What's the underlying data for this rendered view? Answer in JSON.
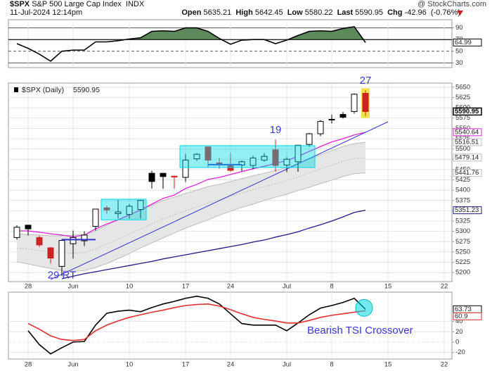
{
  "header": {
    "symbol": "$SPX",
    "name": "S&P 500 Large Cap Index",
    "exchange": "INDX",
    "source": "@ StockCharts.com",
    "datetime": "11-Jul-2024 12:14pm",
    "quote": [
      {
        "label": "Open",
        "value": 5635.21
      },
      {
        "label": "High",
        "value": 5642.45
      },
      {
        "label": "Low",
        "value": 5580.22
      },
      {
        "label": "Last",
        "value": 5590.95
      },
      {
        "label": "Chg",
        "value": -42.96
      }
    ],
    "change_pct": {
      "value": -0.76,
      "label": "(-0.76%)"
    },
    "change_color": "#cc2222"
  },
  "chart_data": [
    {
      "type": "line",
      "ylim": [
        22,
        104
      ],
      "yticks": [
        90,
        70,
        50,
        30
      ],
      "grid": true,
      "series": [
        {
          "color": "#000000",
          "fill_above": 70,
          "fill_color": "#5d8a5a",
          "values": [
            63,
            55,
            45,
            33,
            50,
            52,
            52,
            66,
            66,
            68,
            71,
            73,
            84,
            85,
            84,
            90,
            90,
            84,
            72,
            62,
            69,
            70,
            70,
            63,
            69,
            77,
            84,
            85,
            84,
            89,
            92,
            64.99,
            null,
            null,
            null,
            null,
            null,
            null,
            null
          ]
        }
      ]
    },
    {
      "type": "candlestick",
      "legend_label": "$SPX (Daily)",
      "categories": [
        null,
        "28",
        null,
        null,
        null,
        "Jun",
        null,
        null,
        null,
        null,
        "10",
        null,
        null,
        null,
        null,
        "17",
        null,
        null,
        null,
        "24",
        null,
        null,
        null,
        null,
        "Jul",
        null,
        null,
        null,
        "8",
        null,
        null,
        null,
        null,
        "15",
        null,
        null,
        null,
        null,
        "22"
      ],
      "open": [
        5285,
        5315,
        5285,
        5260,
        5215,
        5270,
        5277,
        5312,
        5357,
        5343,
        5341,
        5353,
        5441,
        5441,
        5434,
        5431,
        5476,
        5505,
        5466,
        5459,
        5461,
        5460,
        5473,
        5498,
        5461,
        5469,
        5511,
        5537,
        5572,
        5584,
        5591,
        5635.21,
        null,
        null,
        null,
        null,
        null,
        null,
        null
      ],
      "high": [
        5315,
        5315,
        5290,
        5262,
        5281,
        5302,
        5300,
        5354,
        5362,
        5376,
        5366,
        5376,
        5447,
        5441,
        5434,
        5488,
        5490,
        5505,
        5478,
        5490,
        5472,
        5483,
        5490,
        5523,
        5480,
        5510,
        5539,
        5570,
        5583,
        5590,
        5635,
        5642.45,
        null,
        null,
        null,
        null,
        null,
        null,
        null
      ],
      "low": [
        5280,
        5290,
        5262,
        5222,
        5191,
        5234,
        5264,
        5302,
        5343,
        5331,
        5331,
        5331,
        5404,
        5403,
        5403,
        5420,
        5471,
        5455,
        5452,
        5445,
        5446,
        5451,
        5469,
        5445,
        5444,
        5445,
        5505,
        5531,
        5562,
        5574,
        5586,
        5580.22,
        null,
        null,
        null,
        null,
        null,
        null,
        null
      ],
      "close": [
        5310,
        5306,
        5267,
        5235,
        5278,
        5285,
        5291,
        5354,
        5352,
        5347,
        5361,
        5375,
        5421,
        5433,
        5432,
        5473,
        5487,
        5473,
        5465,
        5448,
        5469,
        5478,
        5482,
        5460,
        5475,
        5509,
        5537,
        5567,
        5572,
        5577,
        5633,
        5590.95,
        null,
        null,
        null,
        null,
        null,
        null,
        null
      ],
      "candle_colors": [
        "#000000",
        "#000000",
        "#cc2222",
        "#cc2222",
        "#000000",
        "#000000",
        "#000000",
        "#000000",
        "#cc2222",
        "#000000",
        "#000000",
        "#000000",
        "#000000",
        "#000000",
        "#cc2222",
        "#000000",
        "#000000",
        "#cc2222",
        "#cc2222",
        "#cc2222",
        "#000000",
        "#000000",
        "#000000",
        "#cc2222",
        "#000000",
        "#000000",
        "#000000",
        "#000000",
        "#000000",
        "#000000",
        "#000000",
        "#cc2222",
        null,
        null,
        null,
        null,
        null,
        null,
        null
      ],
      "ylim": [
        5178,
        5660
      ],
      "yticks": [
        5200,
        5225,
        5250,
        5275,
        5300,
        5325,
        5350,
        5375,
        5400,
        5425,
        5450,
        5475,
        5500,
        5525,
        5550,
        5575,
        5600,
        5625,
        5650
      ],
      "grid": true,
      "band": {
        "fill": "#e6e6e6",
        "line_color": "#bdbdbd",
        "upper": [
          5294,
          5292,
          5291,
          5289,
          5289,
          5291,
          5292,
          5301,
          5315,
          5328,
          5340,
          5352,
          5363,
          5375,
          5383,
          5392,
          5400,
          5409,
          5414,
          5421,
          5428,
          5435,
          5441,
          5448,
          5455,
          5465,
          5476,
          5486,
          5496,
          5506,
          5513,
          5516.51,
          null,
          null,
          null,
          null,
          null,
          null,
          null
        ],
        "middle": [
          5260,
          5257,
          5253,
          5250,
          5247,
          5247,
          5249,
          5257,
          5269,
          5281,
          5293,
          5306,
          5318,
          5330,
          5340,
          5350,
          5359,
          5369,
          5377,
          5385,
          5393,
          5401,
          5408,
          5416,
          5423,
          5432,
          5442,
          5451,
          5460,
          5470,
          5477,
          5479.14,
          null,
          null,
          null,
          null,
          null,
          null,
          null
        ],
        "lower": [
          5226,
          5221,
          5215,
          5210,
          5205,
          5203,
          5205,
          5212,
          5222,
          5234,
          5246,
          5260,
          5272,
          5284,
          5296,
          5308,
          5318,
          5328,
          5339,
          5349,
          5358,
          5366,
          5375,
          5383,
          5390,
          5399,
          5407,
          5416,
          5424,
          5433,
          5440,
          5441.76,
          null,
          null,
          null,
          null,
          null,
          null,
          null
        ]
      },
      "series": [
        {
          "color": "#e020d8",
          "values": [
            5301,
            5301,
            5298,
            5294,
            5291,
            5287,
            5291,
            5306,
            5318,
            5328,
            5340,
            5352,
            5366,
            5380,
            5388,
            5404,
            5414,
            5426,
            5431,
            5438,
            5445,
            5452,
            5458,
            5465,
            5472,
            5482,
            5494,
            5506,
            5517,
            5525,
            5534,
            5540.64,
            null,
            null,
            null,
            null,
            null,
            null,
            null
          ]
        },
        {
          "color": "#1c1c84",
          "values": [
            null,
            null,
            null,
            null,
            5185,
            5191,
            5197,
            5202,
            5207,
            5212,
            5217,
            5222,
            5227,
            5233,
            5238,
            5243,
            5248,
            5253,
            5258,
            5263,
            5268,
            5274,
            5279,
            5286,
            5292,
            5299,
            5308,
            5316,
            5325,
            5335,
            5346,
            5351.23,
            null,
            null,
            null,
            null,
            null,
            null,
            null
          ]
        }
      ],
      "trend_line": {
        "color": "#3535d0",
        "start": {
          "index": 3,
          "value": 5183
        },
        "end": {
          "index": 33,
          "value": 5566
        }
      },
      "support_lines": [
        {
          "start": 4,
          "end": 7,
          "value": 5280
        },
        {
          "start": 17,
          "end": 20,
          "value": 5462
        }
      ],
      "boxes": [
        {
          "start": 8,
          "end": 11,
          "low": 5328,
          "high": 5378
        },
        {
          "start": 15,
          "end": 26,
          "low": 5455,
          "high": 5508
        }
      ],
      "box_color": "#00d8e8",
      "annotation_color": "#3a3ac8",
      "annotations": [
        {
          "text": "29 RT",
          "index": 4,
          "position": "below"
        },
        {
          "text": "19",
          "index": 23,
          "position": "above"
        },
        {
          "text": "27",
          "index": 31,
          "position": "above",
          "highlight": "#f2e24a"
        }
      ]
    },
    {
      "type": "line",
      "categories": [
        null,
        "28",
        null,
        null,
        null,
        "Jun",
        null,
        null,
        null,
        null,
        "10",
        null,
        null,
        null,
        null,
        "17",
        null,
        null,
        null,
        "24",
        null,
        null,
        null,
        null,
        "Jul",
        null,
        null,
        null,
        "8",
        null,
        null,
        null,
        null,
        "15",
        null,
        null,
        null,
        null,
        "22"
      ],
      "ylim": [
        -33,
        97
      ],
      "yticks": [
        40,
        20,
        0,
        -20
      ],
      "grid": true,
      "series": [
        {
          "color": "#000000",
          "values": [
            null,
            22,
            -5,
            -23,
            -11,
            0,
            1,
            33,
            56,
            60,
            62,
            59,
            67,
            74,
            79,
            85,
            89,
            85,
            74,
            55,
            36,
            33,
            33,
            33,
            22,
            37,
            53,
            66,
            71,
            77,
            85,
            63.73,
            null,
            null,
            null,
            null,
            null,
            null,
            null
          ]
        },
        {
          "color": "#e03030",
          "values": [
            null,
            36,
            25,
            12,
            5,
            3,
            5,
            22,
            33,
            41,
            48,
            53,
            58,
            62,
            67,
            71,
            73,
            74,
            70,
            63,
            55,
            48,
            44,
            41,
            37,
            37,
            42,
            48,
            52,
            55,
            58,
            60.9,
            null,
            null,
            null,
            null,
            null,
            null,
            null
          ]
        }
      ],
      "annotation": "Bearish TSI Crossover",
      "annotation_color": "#3a3ac8"
    }
  ]
}
